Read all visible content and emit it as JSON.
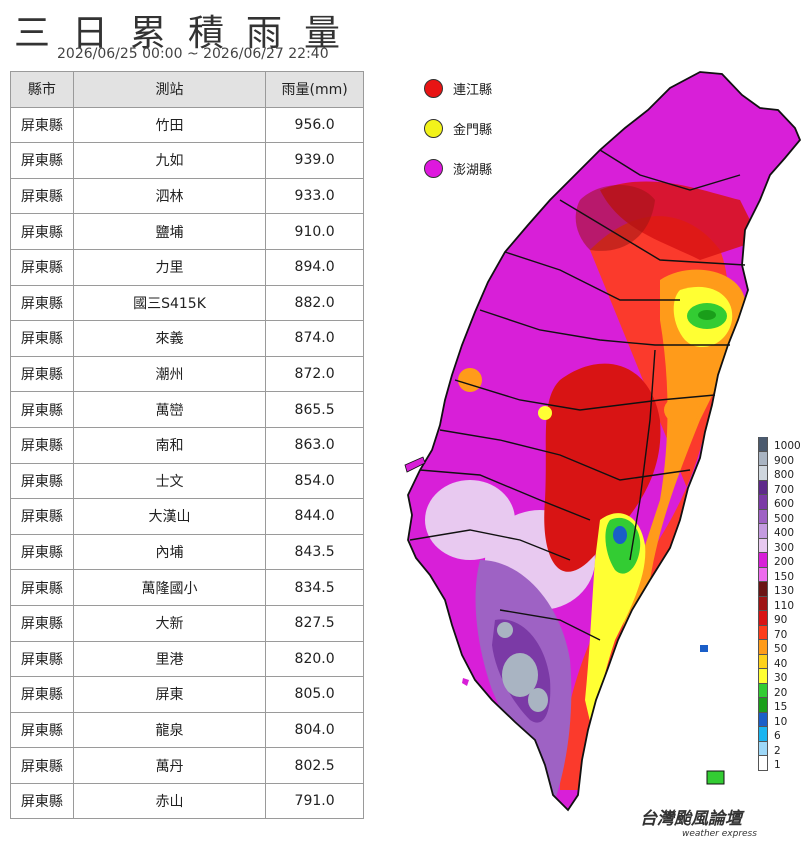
{
  "title": "三日累積雨量",
  "subtitle": "2026/06/25 00:00 ~ 2026/06/27 22:40",
  "table": {
    "headers": [
      "縣市",
      "測站",
      "雨量(mm)"
    ],
    "rows": [
      [
        "屏東縣",
        "竹田",
        "956.0"
      ],
      [
        "屏東縣",
        "九如",
        "939.0"
      ],
      [
        "屏東縣",
        "泗林",
        "933.0"
      ],
      [
        "屏東縣",
        "鹽埔",
        "910.0"
      ],
      [
        "屏東縣",
        "力里",
        "894.0"
      ],
      [
        "屏東縣",
        "國三S415K",
        "882.0"
      ],
      [
        "屏東縣",
        "來義",
        "874.0"
      ],
      [
        "屏東縣",
        "潮州",
        "872.0"
      ],
      [
        "屏東縣",
        "萬巒",
        "865.5"
      ],
      [
        "屏東縣",
        "南和",
        "863.0"
      ],
      [
        "屏東縣",
        "士文",
        "854.0"
      ],
      [
        "屏東縣",
        "大漢山",
        "844.0"
      ],
      [
        "屏東縣",
        "內埔",
        "843.5"
      ],
      [
        "屏東縣",
        "萬隆國小",
        "834.5"
      ],
      [
        "屏東縣",
        "大新",
        "827.5"
      ],
      [
        "屏東縣",
        "里港",
        "820.0"
      ],
      [
        "屏東縣",
        "屏東",
        "805.0"
      ],
      [
        "屏東縣",
        "龍泉",
        "804.0"
      ],
      [
        "屏東縣",
        "萬丹",
        "802.5"
      ],
      [
        "屏東縣",
        "赤山",
        "791.0"
      ]
    ]
  },
  "islands": [
    {
      "label": "連江縣",
      "color": "#e81414"
    },
    {
      "label": "金門縣",
      "color": "#f2f21a"
    },
    {
      "label": "澎湖縣",
      "color": "#de18de"
    }
  ],
  "scale": {
    "labels": [
      "1000",
      "900",
      "800",
      "700",
      "600",
      "500",
      "400",
      "300",
      "200",
      "150",
      "130",
      "110",
      "90",
      "70",
      "50",
      "40",
      "30",
      "20",
      "15",
      "10",
      "6",
      "2",
      "1"
    ],
    "colors": [
      "#4b5a6e",
      "#a9b4c2",
      "#cfd6de",
      "#5e2a8a",
      "#7b3aa6",
      "#9e62c4",
      "#c49be0",
      "#e8c9f0",
      "#d81fd8",
      "#ee6bee",
      "#6b1414",
      "#9e1414",
      "#d81414",
      "#ff3d1a",
      "#ff9b1a",
      "#ffd21a",
      "#ffff33",
      "#33cc33",
      "#1a9e1a",
      "#1a5ec8",
      "#1ab4f0",
      "#9ed8f8",
      "#ffffff"
    ]
  },
  "brand": {
    "main": "台灣颱風論壇",
    "sub": "weather express"
  }
}
